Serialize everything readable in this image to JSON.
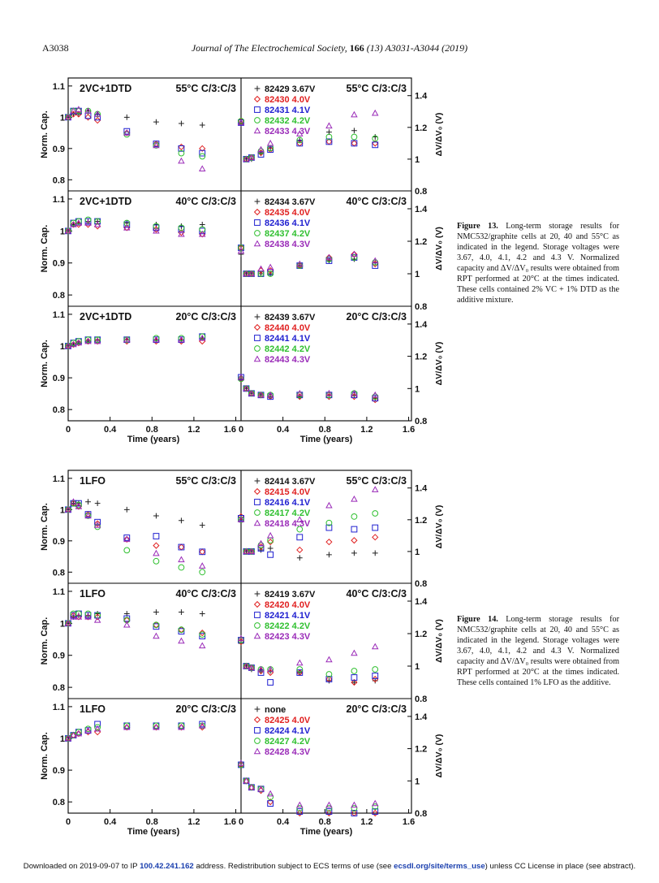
{
  "header": {
    "page": "A3038",
    "journal": "Journal of The Electrochemical Society",
    "volume": "166",
    "issue_pages": "(13) A3031-A3044 (2019)"
  },
  "captions": {
    "fig13": {
      "label": "Figure 13.",
      "text": "Long-term storage results for NMC532/graphite cells at 20, 40 and 55°C as indicated in the legend. Storage voltages were 3.67, 4.0, 4.1, 4.2 and 4.3 V. Normalized capacity and ΔV/ΔV₀ results were obtained from RPT performed at 20°C at the times indicated. These cells contained 2% VC + 1% DTD as the additive mixture."
    },
    "fig14": {
      "label": "Figure 14.",
      "text": "Long-term storage results for NMC532/graphite cells at 20, 40 and 55°C as indicated in the legend. Storage voltages were 3.67, 4.0, 4.1, 4.2 and 4.3 V. Normalized capacity and ΔV/ΔV₀ results were obtained from RPT performed at 20°C at the times indicated. These cells contained 1% LFO as the additive."
    }
  },
  "footer": {
    "pre": "Downloaded on 2019-09-07 to IP ",
    "ip": "100.42.241.162",
    "mid": " address. Redistribution subject to ECS terms of use (see ",
    "link": "ecsdl.org/site/terms_use",
    "post": ") unless CC License in place (see abstract)."
  },
  "colors": {
    "s367": "#222222",
    "s40": "#e02020",
    "s41": "#2020d0",
    "s42": "#30c030",
    "s43": "#9a2bb8"
  },
  "axes": {
    "left_ylabel": "Norm. Cap.",
    "right_ylabel": "ΔV/ΔV₀ (V)",
    "xlabel": "Time (years)",
    "left_ticks": [
      "0.8",
      "0.9",
      "1",
      "1.1"
    ],
    "right_ticks": [
      "0.8",
      "1",
      "1.2",
      "1.4"
    ],
    "x_ticks": [
      "0",
      "0.4",
      "0.8",
      "1.2",
      "1.6"
    ]
  },
  "chart_data": [
    {
      "type": "scatter",
      "figure": "Figure 13",
      "title": "2VC+1DTD",
      "condition": "55°C C/3:C/3",
      "legend": [
        "82429 3.67V",
        "82430 4.0V",
        "82431 4.1V",
        "82432 4.2V",
        "82433 4.3V"
      ],
      "x": [
        0,
        0.05,
        0.1,
        0.19,
        0.28,
        0.56,
        0.84,
        1.08,
        1.28
      ],
      "cap": [
        [
          1.0,
          1.01,
          1.01,
          1.02,
          1.01,
          1.0,
          0.985,
          0.98,
          0.975
        ],
        [
          1.0,
          1.01,
          1.01,
          1.0,
          0.99,
          0.95,
          0.915,
          0.905,
          0.9
        ],
        [
          1.0,
          1.02,
          1.02,
          1.005,
          1.0,
          0.955,
          0.915,
          0.9,
          0.885
        ],
        [
          1.0,
          1.02,
          1.02,
          1.02,
          1.01,
          0.945,
          0.91,
          0.885,
          0.875
        ],
        [
          1.0,
          1.02,
          1.025,
          1.02,
          1.01,
          0.95,
          0.91,
          0.86,
          0.835
        ]
      ],
      "dv": [
        [
          1.22,
          1.0,
          1.0,
          1.04,
          1.07,
          1.12,
          1.17,
          1.18,
          1.14
        ],
        [
          1.24,
          1.0,
          1.01,
          1.04,
          1.06,
          1.1,
          1.11,
          1.1,
          1.1
        ],
        [
          1.23,
          1.0,
          1.01,
          1.03,
          1.06,
          1.1,
          1.11,
          1.1,
          1.09
        ],
        [
          1.24,
          1.0,
          1.01,
          1.05,
          1.07,
          1.12,
          1.14,
          1.14,
          1.13
        ],
        [
          1.23,
          1.0,
          1.01,
          1.06,
          1.1,
          1.16,
          1.21,
          1.28,
          1.29
        ]
      ],
      "xlim": [
        0,
        1.65
      ],
      "cap_ylim": [
        0.78,
        1.11
      ],
      "dv_ylim": [
        0.8,
        1.46
      ]
    },
    {
      "type": "scatter",
      "figure": "Figure 13",
      "title": "2VC+1DTD",
      "condition": "40°C C/3:C/3",
      "legend": [
        "82434 3.67V",
        "82435 4.0V",
        "82436 4.1V",
        "82437 4.2V",
        "82438 4.3V"
      ],
      "x": [
        0,
        0.05,
        0.1,
        0.19,
        0.28,
        0.56,
        0.84,
        1.08,
        1.28
      ],
      "cap": [
        [
          1.0,
          1.02,
          1.025,
          1.03,
          1.03,
          1.025,
          1.02,
          1.015,
          1.02
        ],
        [
          1.0,
          1.02,
          1.02,
          1.02,
          1.015,
          1.01,
          1.005,
          0.995,
          0.99
        ],
        [
          1.0,
          1.025,
          1.03,
          1.03,
          1.03,
          1.02,
          1.01,
          1.005,
          1.0
        ],
        [
          1.0,
          1.025,
          1.03,
          1.035,
          1.03,
          1.025,
          1.015,
          1.01,
          1.005
        ],
        [
          1.0,
          1.02,
          1.025,
          1.025,
          1.02,
          1.01,
          1.0,
          0.99,
          0.99
        ]
      ],
      "dv": [
        [
          1.12,
          1.0,
          1.0,
          1.0,
          1.0,
          1.05,
          1.08,
          1.09,
          1.07
        ],
        [
          1.16,
          1.0,
          1.0,
          1.02,
          1.02,
          1.05,
          1.1,
          1.12,
          1.06
        ],
        [
          1.16,
          1.0,
          1.0,
          1.0,
          1.01,
          1.05,
          1.08,
          1.1,
          1.05
        ],
        [
          1.16,
          1.0,
          1.0,
          1.0,
          1.0,
          1.05,
          1.09,
          1.1,
          1.07
        ],
        [
          1.14,
          1.0,
          1.0,
          1.03,
          1.04,
          1.06,
          1.1,
          1.12,
          1.08
        ]
      ],
      "xlim": [
        0,
        1.65
      ],
      "cap_ylim": [
        0.78,
        1.11
      ],
      "dv_ylim": [
        0.8,
        1.46
      ]
    },
    {
      "type": "scatter",
      "figure": "Figure 13",
      "title": "2VC+1DTD",
      "condition": "20°C C/3:C/3",
      "legend": [
        "82439 3.67V",
        "82440 4.0V",
        "82441 4.1V",
        "82442 4.2V",
        "82443 4.3V"
      ],
      "x": [
        0,
        0.05,
        0.1,
        0.19,
        0.28,
        0.56,
        0.84,
        1.08,
        1.28
      ],
      "cap": [
        [
          1.0,
          1.005,
          1.01,
          1.015,
          1.02,
          1.02,
          1.02,
          1.02,
          1.025
        ],
        [
          1.0,
          1.005,
          1.01,
          1.015,
          1.015,
          1.015,
          1.015,
          1.015,
          1.015
        ],
        [
          1.0,
          1.01,
          1.015,
          1.02,
          1.02,
          1.02,
          1.02,
          1.02,
          1.03
        ],
        [
          1.0,
          1.01,
          1.015,
          1.02,
          1.02,
          1.02,
          1.025,
          1.025,
          1.03
        ],
        [
          1.0,
          1.005,
          1.01,
          1.015,
          1.015,
          1.02,
          1.02,
          1.02,
          1.025
        ]
      ],
      "dv": [
        [
          1.06,
          1.0,
          0.97,
          0.96,
          0.95,
          0.95,
          0.96,
          0.96,
          0.94
        ],
        [
          1.06,
          1.0,
          0.97,
          0.96,
          0.95,
          0.95,
          0.95,
          0.95,
          0.93
        ],
        [
          1.07,
          1.0,
          0.97,
          0.96,
          0.95,
          0.96,
          0.96,
          0.96,
          0.94
        ],
        [
          1.06,
          1.0,
          0.97,
          0.96,
          0.96,
          0.96,
          0.96,
          0.97,
          0.95
        ],
        [
          1.07,
          1.0,
          0.97,
          0.96,
          0.96,
          0.97,
          0.97,
          0.97,
          0.96
        ]
      ],
      "xlim": [
        0,
        1.65
      ],
      "cap_ylim": [
        0.78,
        1.11
      ],
      "dv_ylim": [
        0.8,
        1.46
      ]
    },
    {
      "type": "scatter",
      "figure": "Figure 14",
      "title": "1LFO",
      "condition": "55°C C/3:C/3",
      "legend": [
        "82414 3.67V",
        "82415 4.0V",
        "82416 4.1V",
        "82417 4.2V",
        "82418 4.3V"
      ],
      "x": [
        0,
        0.05,
        0.1,
        0.19,
        0.28,
        0.56,
        0.84,
        1.08,
        1.28
      ],
      "cap": [
        [
          1.0,
          1.02,
          1.02,
          1.025,
          1.02,
          1.0,
          0.98,
          0.965,
          0.95
        ],
        [
          1.0,
          1.02,
          1.01,
          0.985,
          0.955,
          0.905,
          0.885,
          0.88,
          0.865
        ],
        [
          1.0,
          1.02,
          1.02,
          0.985,
          0.96,
          0.91,
          0.915,
          0.88,
          0.865
        ],
        [
          1.0,
          1.02,
          1.015,
          0.98,
          0.945,
          0.87,
          0.835,
          0.815,
          0.8
        ],
        [
          1.0,
          1.025,
          1.01,
          0.98,
          0.95,
          0.905,
          0.86,
          0.84,
          0.82
        ]
      ],
      "dv": [
        [
          1.2,
          1.0,
          1.0,
          1.01,
          1.02,
          0.96,
          0.98,
          0.99,
          0.99
        ],
        [
          1.22,
          1.0,
          1.0,
          1.03,
          1.06,
          1.01,
          1.06,
          1.07,
          1.09
        ],
        [
          1.21,
          1.0,
          1.0,
          1.02,
          0.98,
          1.09,
          1.15,
          1.14,
          1.15
        ],
        [
          1.2,
          1.0,
          1.0,
          1.04,
          1.07,
          1.14,
          1.18,
          1.22,
          1.24
        ],
        [
          1.2,
          1.0,
          1.0,
          1.05,
          1.1,
          1.2,
          1.29,
          1.33,
          1.39
        ]
      ],
      "xlim": [
        0,
        1.65
      ],
      "cap_ylim": [
        0.78,
        1.11
      ],
      "dv_ylim": [
        0.8,
        1.46
      ]
    },
    {
      "type": "scatter",
      "figure": "Figure 14",
      "title": "1LFO",
      "condition": "40°C C/3:C/3",
      "legend": [
        "82419 3.67V",
        "82420 4.0V",
        "82421 4.1V",
        "82422 4.2V",
        "82423 4.3V"
      ],
      "x": [
        0,
        0.05,
        0.1,
        0.19,
        0.28,
        0.56,
        0.84,
        1.08,
        1.28
      ],
      "cap": [
        [
          1.0,
          1.02,
          1.025,
          1.025,
          1.03,
          1.03,
          1.035,
          1.035,
          1.03
        ],
        [
          1.0,
          1.025,
          1.02,
          1.02,
          1.02,
          1.01,
          0.995,
          0.98,
          0.97
        ],
        [
          1.0,
          1.025,
          1.03,
          1.025,
          1.025,
          1.015,
          0.99,
          0.975,
          0.96
        ],
        [
          1.0,
          1.03,
          1.03,
          1.03,
          1.025,
          1.01,
          0.995,
          0.98,
          0.965
        ],
        [
          1.0,
          1.02,
          1.02,
          1.02,
          1.01,
          0.995,
          0.96,
          0.945,
          0.93
        ]
      ],
      "dv": [
        [
          1.14,
          1.0,
          0.98,
          0.97,
          0.97,
          0.96,
          0.91,
          0.9,
          0.91
        ],
        [
          1.15,
          1.0,
          0.99,
          0.97,
          0.96,
          0.96,
          0.92,
          0.9,
          0.92
        ],
        [
          1.16,
          1.0,
          0.99,
          0.96,
          0.9,
          0.96,
          0.92,
          0.93,
          0.94
        ],
        [
          1.16,
          1.0,
          0.99,
          0.98,
          0.98,
          0.98,
          0.95,
          0.97,
          0.98
        ],
        [
          1.17,
          1.0,
          0.99,
          0.98,
          0.98,
          1.02,
          1.04,
          1.08,
          1.12
        ]
      ],
      "xlim": [
        0,
        1.65
      ],
      "cap_ylim": [
        0.78,
        1.11
      ],
      "dv_ylim": [
        0.8,
        1.46
      ]
    },
    {
      "type": "scatter",
      "figure": "Figure 14",
      "title": "1LFO",
      "condition": "20°C C/3:C/3",
      "legend": [
        "none",
        "82425 4.0V",
        "82424 4.1V",
        "82427 4.2V",
        "82428 4.3V"
      ],
      "x": [
        0,
        0.05,
        0.1,
        0.19,
        0.28,
        0.56,
        0.84,
        1.08,
        1.28
      ],
      "cap": [
        [],
        [
          1.0,
          1.01,
          1.015,
          1.02,
          1.02,
          1.035,
          1.035,
          1.035,
          1.035
        ],
        [
          1.0,
          1.01,
          1.02,
          1.025,
          1.045,
          1.04,
          1.04,
          1.04,
          1.045
        ],
        [
          1.0,
          1.01,
          1.02,
          1.03,
          1.035,
          1.04,
          1.04,
          1.04,
          1.04
        ],
        [
          1.0,
          1.01,
          1.015,
          1.025,
          1.03,
          1.035,
          1.035,
          1.035,
          1.04
        ]
      ],
      "dv": [
        [],
        [
          1.1,
          1.0,
          0.96,
          0.94,
          0.87,
          0.8,
          0.8,
          0.8,
          0.8
        ],
        [
          1.1,
          1.0,
          0.96,
          0.95,
          0.86,
          0.81,
          0.81,
          0.8,
          0.81
        ],
        [
          1.1,
          1.0,
          0.96,
          0.95,
          0.9,
          0.83,
          0.83,
          0.83,
          0.84
        ],
        [
          1.11,
          1.0,
          0.96,
          0.95,
          0.92,
          0.85,
          0.85,
          0.85,
          0.86
        ]
      ],
      "xlim": [
        0,
        1.65
      ],
      "cap_ylim": [
        0.78,
        1.11
      ],
      "dv_ylim": [
        0.8,
        1.46
      ]
    }
  ]
}
